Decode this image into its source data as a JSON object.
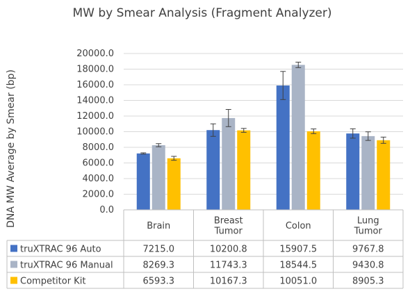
{
  "chart_data": {
    "type": "bar",
    "title": "MW by Smear Analysis (Fragment Analyzer)",
    "ylabel": "DNA MW Average by Smear (bp)",
    "xlabel": "",
    "ylim": [
      0,
      20000
    ],
    "yticks": [
      "0.0",
      "2000.0",
      "4000.0",
      "6000.0",
      "8000.0",
      "10000.0",
      "12000.0",
      "14000.0",
      "16000.0",
      "18000.0",
      "20000.0"
    ],
    "grid": true,
    "legend_placement": "data-table",
    "categories": [
      [
        "Brain"
      ],
      [
        "Breast",
        "Tumor"
      ],
      [
        "Colon"
      ],
      [
        "Lung",
        "Tumor"
      ]
    ],
    "series": [
      {
        "name": "truXTRAC 96 Auto",
        "color": "#4472c4",
        "values": [
          7215.0,
          10200.8,
          15907.5,
          9767.8
        ],
        "labels": [
          "7215.0",
          "10200.8",
          "15907.5",
          "9767.8"
        ],
        "errors": [
          80,
          800,
          1800,
          600
        ]
      },
      {
        "name": "truXTRAC 96 Manual",
        "color": "#a9b4c6",
        "values": [
          8269.3,
          11743.3,
          18544.5,
          9430.8
        ],
        "labels": [
          "8269.3",
          "11743.3",
          "18544.5",
          "9430.8"
        ],
        "errors": [
          200,
          1100,
          350,
          550
        ]
      },
      {
        "name": "Competitor Kit",
        "color": "#ffc000",
        "values": [
          6593.3,
          10167.3,
          10051.0,
          8905.3
        ],
        "labels": [
          "6593.3",
          "10167.3",
          "10051.0",
          "8905.3"
        ],
        "errors": [
          250,
          250,
          300,
          400
        ]
      }
    ]
  }
}
